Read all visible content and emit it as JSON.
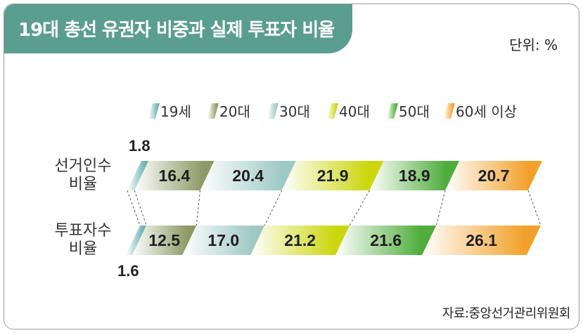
{
  "title": "19대 총선 유권자 비중과 실제 투표자 비율",
  "unit": "단위: %",
  "source": "자료:중앙선거관리위원회",
  "colors": [
    "#6fb1b1",
    "#8e9a66",
    "#9fc9c5",
    "#cbd60c",
    "#4fad3c",
    "#f2a22c"
  ],
  "chart_data": {
    "type": "bar",
    "stacked": true,
    "orientation": "horizontal",
    "categories": [
      "선거인수\n비율",
      "투표자수\n비율"
    ],
    "series": [
      {
        "name": "19세",
        "values": [
          1.8,
          1.6
        ]
      },
      {
        "name": "20대",
        "values": [
          16.4,
          12.5
        ]
      },
      {
        "name": "30대",
        "values": [
          20.4,
          17.0
        ]
      },
      {
        "name": "40대",
        "values": [
          21.9,
          21.2
        ]
      },
      {
        "name": "50대",
        "values": [
          18.9,
          21.6
        ]
      },
      {
        "name": "60세 이상",
        "values": [
          20.7,
          26.1
        ]
      }
    ],
    "legend_position": "top"
  }
}
